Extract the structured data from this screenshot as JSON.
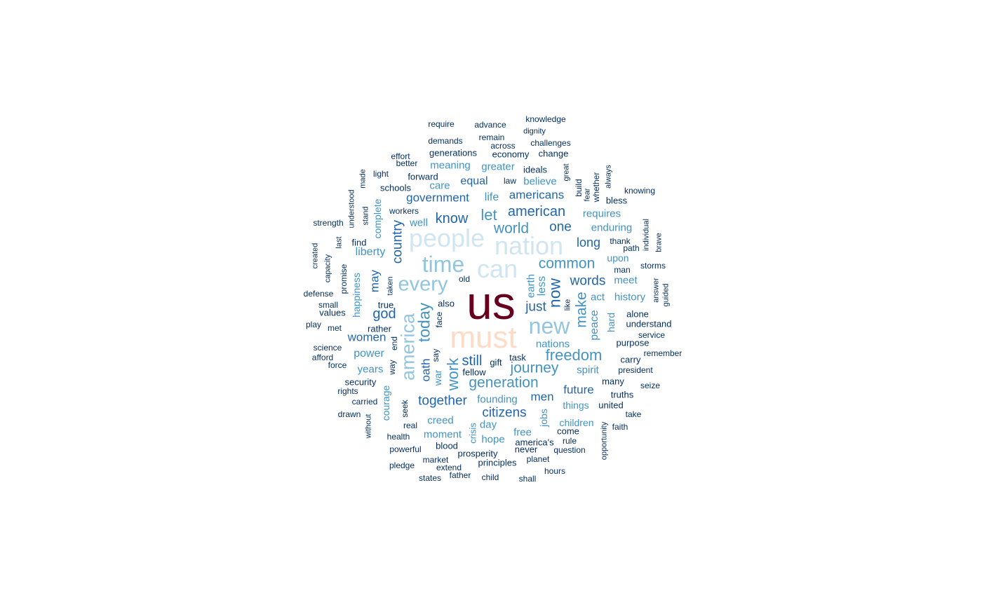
{
  "palette": {
    "darkest": "#67001F",
    "peach": "#FDDBC7",
    "pale_blue": "#D1E5F0",
    "light_blue": "#92C5DE",
    "mid_blue": "#4393C3",
    "blue": "#2166AC",
    "navy": "#053061"
  },
  "words": [
    {
      "text": "us",
      "weight": 1.0,
      "tier": "darkest"
    },
    {
      "text": "must",
      "weight": 0.55,
      "tier": "peach"
    },
    {
      "text": "people",
      "weight": 0.42,
      "tier": "pale_blue"
    },
    {
      "text": "nation",
      "weight": 0.42,
      "tier": "pale_blue"
    },
    {
      "text": "can",
      "weight": 0.42,
      "tier": "pale_blue"
    },
    {
      "text": "time",
      "weight": 0.36,
      "tier": "light_blue"
    },
    {
      "text": "new",
      "weight": 0.36,
      "tier": "light_blue"
    },
    {
      "text": "every",
      "weight": 0.33,
      "tier": "light_blue"
    },
    {
      "text": "america",
      "weight": 0.33,
      "tier": "light_blue"
    },
    {
      "text": "today",
      "weight": 0.25,
      "tier": "mid_blue"
    },
    {
      "text": "freedom",
      "weight": 0.25,
      "tier": "mid_blue"
    },
    {
      "text": "generation",
      "weight": 0.25,
      "tier": "mid_blue"
    },
    {
      "text": "work",
      "weight": 0.25,
      "tier": "mid_blue"
    },
    {
      "text": "journey",
      "weight": 0.25,
      "tier": "mid_blue"
    },
    {
      "text": "world",
      "weight": 0.25,
      "tier": "mid_blue"
    },
    {
      "text": "common",
      "weight": 0.25,
      "tier": "mid_blue"
    },
    {
      "text": "let",
      "weight": 0.25,
      "tier": "mid_blue"
    },
    {
      "text": "make",
      "weight": 0.25,
      "tier": "mid_blue"
    },
    {
      "text": "now",
      "weight": 0.25,
      "tier": "blue"
    },
    {
      "text": "god",
      "weight": 0.2,
      "tier": "blue"
    },
    {
      "text": "still",
      "weight": 0.2,
      "tier": "blue"
    },
    {
      "text": "know",
      "weight": 0.2,
      "tier": "blue"
    },
    {
      "text": "country",
      "weight": 0.2,
      "tier": "blue"
    },
    {
      "text": "american",
      "weight": 0.2,
      "tier": "blue"
    },
    {
      "text": "together",
      "weight": 0.2,
      "tier": "blue"
    },
    {
      "text": "citizens",
      "weight": 0.2,
      "tier": "blue"
    },
    {
      "text": "one",
      "weight": 0.2,
      "tier": "blue"
    },
    {
      "text": "words",
      "weight": 0.2,
      "tier": "blue"
    },
    {
      "text": "just",
      "weight": 0.2,
      "tier": "blue"
    },
    {
      "text": "oath",
      "weight": 0.18,
      "tier": "blue"
    },
    {
      "text": "women",
      "weight": 0.18,
      "tier": "blue"
    },
    {
      "text": "men",
      "weight": 0.18,
      "tier": "blue"
    },
    {
      "text": "long",
      "weight": 0.18,
      "tier": "blue"
    },
    {
      "text": "future",
      "weight": 0.18,
      "tier": "blue"
    },
    {
      "text": "may",
      "weight": 0.18,
      "tier": "blue"
    },
    {
      "text": "americans",
      "weight": 0.18,
      "tier": "blue"
    },
    {
      "text": "government",
      "weight": 0.18,
      "tier": "blue"
    },
    {
      "text": "power",
      "weight": 0.18,
      "tier": "mid_blue"
    },
    {
      "text": "liberty",
      "weight": 0.18,
      "tier": "mid_blue"
    },
    {
      "text": "peace",
      "weight": 0.18,
      "tier": "mid_blue"
    },
    {
      "text": "equal",
      "weight": 0.16,
      "tier": "blue"
    },
    {
      "text": "life",
      "weight": 0.16,
      "tier": "mid_blue"
    },
    {
      "text": "less",
      "weight": 0.16,
      "tier": "mid_blue"
    },
    {
      "text": "nations",
      "weight": 0.16,
      "tier": "mid_blue"
    },
    {
      "text": "spirit",
      "weight": 0.16,
      "tier": "mid_blue"
    },
    {
      "text": "creed",
      "weight": 0.16,
      "tier": "mid_blue"
    },
    {
      "text": "years",
      "weight": 0.16,
      "tier": "mid_blue"
    },
    {
      "text": "earth",
      "weight": 0.16,
      "tier": "mid_blue"
    },
    {
      "text": "war",
      "weight": 0.16,
      "tier": "mid_blue"
    },
    {
      "text": "history",
      "weight": 0.15,
      "tier": "mid_blue"
    },
    {
      "text": "believe",
      "weight": 0.15,
      "tier": "mid_blue"
    },
    {
      "text": "founding",
      "weight": 0.15,
      "tier": "mid_blue"
    },
    {
      "text": "enduring",
      "weight": 0.15,
      "tier": "mid_blue"
    },
    {
      "text": "requires",
      "weight": 0.15,
      "tier": "mid_blue"
    },
    {
      "text": "happiness",
      "weight": 0.15,
      "tier": "mid_blue"
    },
    {
      "text": "meaning",
      "weight": 0.15,
      "tier": "mid_blue"
    },
    {
      "text": "greater",
      "weight": 0.15,
      "tier": "mid_blue"
    },
    {
      "text": "things",
      "weight": 0.15,
      "tier": "mid_blue"
    },
    {
      "text": "moment",
      "weight": 0.15,
      "tier": "mid_blue"
    },
    {
      "text": "complete",
      "weight": 0.15,
      "tier": "mid_blue"
    },
    {
      "text": "hard",
      "weight": 0.15,
      "tier": "mid_blue"
    },
    {
      "text": "children",
      "weight": 0.15,
      "tier": "mid_blue"
    },
    {
      "text": "courage",
      "weight": 0.15,
      "tier": "mid_blue"
    },
    {
      "text": "jobs",
      "weight": 0.15,
      "tier": "mid_blue"
    },
    {
      "text": "crisis",
      "weight": 0.15,
      "tier": "mid_blue"
    },
    {
      "text": "act",
      "weight": 0.15,
      "tier": "mid_blue"
    },
    {
      "text": "meet",
      "weight": 0.15,
      "tier": "mid_blue"
    },
    {
      "text": "upon",
      "weight": 0.15,
      "tier": "mid_blue"
    },
    {
      "text": "hope",
      "weight": 0.15,
      "tier": "mid_blue"
    },
    {
      "text": "day",
      "weight": 0.15,
      "tier": "mid_blue"
    },
    {
      "text": "free",
      "weight": 0.15,
      "tier": "mid_blue"
    },
    {
      "text": "care",
      "weight": 0.15,
      "tier": "mid_blue"
    },
    {
      "text": "well",
      "weight": 0.15,
      "tier": "mid_blue"
    },
    {
      "text": "require",
      "weight": 0.1,
      "tier": "navy"
    },
    {
      "text": "advance",
      "weight": 0.1,
      "tier": "navy"
    },
    {
      "text": "knowledge",
      "weight": 0.1,
      "tier": "navy"
    },
    {
      "text": "dignity",
      "weight": 0.1,
      "tier": "navy"
    },
    {
      "text": "remain",
      "weight": 0.1,
      "tier": "navy"
    },
    {
      "text": "demands",
      "weight": 0.1,
      "tier": "navy"
    },
    {
      "text": "challenges",
      "weight": 0.1,
      "tier": "navy"
    },
    {
      "text": "across",
      "weight": 0.1,
      "tier": "navy"
    },
    {
      "text": "effort",
      "weight": 0.1,
      "tier": "navy"
    },
    {
      "text": "generations",
      "weight": 0.12,
      "tier": "navy"
    },
    {
      "text": "economy",
      "weight": 0.12,
      "tier": "navy"
    },
    {
      "text": "change",
      "weight": 0.12,
      "tier": "navy"
    },
    {
      "text": "better",
      "weight": 0.1,
      "tier": "navy"
    },
    {
      "text": "made",
      "weight": 0.1,
      "tier": "navy"
    },
    {
      "text": "light",
      "weight": 0.1,
      "tier": "navy"
    },
    {
      "text": "forward",
      "weight": 0.12,
      "tier": "navy"
    },
    {
      "text": "ideals",
      "weight": 0.12,
      "tier": "navy"
    },
    {
      "text": "great",
      "weight": 0.1,
      "tier": "navy"
    },
    {
      "text": "build",
      "weight": 0.1,
      "tier": "navy"
    },
    {
      "text": "whether",
      "weight": 0.1,
      "tier": "navy"
    },
    {
      "text": "always",
      "weight": 0.1,
      "tier": "navy"
    },
    {
      "text": "law",
      "weight": 0.1,
      "tier": "navy"
    },
    {
      "text": "fear",
      "weight": 0.1,
      "tier": "navy"
    },
    {
      "text": "understood",
      "weight": 0.1,
      "tier": "navy"
    },
    {
      "text": "schools",
      "weight": 0.12,
      "tier": "navy"
    },
    {
      "text": "knowing",
      "weight": 0.1,
      "tier": "navy"
    },
    {
      "text": "bless",
      "weight": 0.12,
      "tier": "navy"
    },
    {
      "text": "stand",
      "weight": 0.1,
      "tier": "navy"
    },
    {
      "text": "workers",
      "weight": 0.1,
      "tier": "navy"
    },
    {
      "text": "strength",
      "weight": 0.1,
      "tier": "navy"
    },
    {
      "text": "individual",
      "weight": 0.1,
      "tier": "navy"
    },
    {
      "text": "find",
      "weight": 0.12,
      "tier": "navy"
    },
    {
      "text": "last",
      "weight": 0.1,
      "tier": "navy"
    },
    {
      "text": "thank",
      "weight": 0.1,
      "tier": "navy"
    },
    {
      "text": "brave",
      "weight": 0.1,
      "tier": "navy"
    },
    {
      "text": "path",
      "weight": 0.1,
      "tier": "navy"
    },
    {
      "text": "created",
      "weight": 0.1,
      "tier": "navy"
    },
    {
      "text": "capacity",
      "weight": 0.1,
      "tier": "navy"
    },
    {
      "text": "promise",
      "weight": 0.12,
      "tier": "navy"
    },
    {
      "text": "man",
      "weight": 0.1,
      "tier": "navy"
    },
    {
      "text": "storms",
      "weight": 0.1,
      "tier": "navy"
    },
    {
      "text": "old",
      "weight": 0.1,
      "tier": "navy"
    },
    {
      "text": "taken",
      "weight": 0.1,
      "tier": "navy"
    },
    {
      "text": "defense",
      "weight": 0.1,
      "tier": "navy"
    },
    {
      "text": "answer",
      "weight": 0.1,
      "tier": "navy"
    },
    {
      "text": "guided",
      "weight": 0.1,
      "tier": "navy"
    },
    {
      "text": "small",
      "weight": 0.1,
      "tier": "navy"
    },
    {
      "text": "true",
      "weight": 0.12,
      "tier": "navy"
    },
    {
      "text": "also",
      "weight": 0.12,
      "tier": "navy"
    },
    {
      "text": "like",
      "weight": 0.1,
      "tier": "navy"
    },
    {
      "text": "alone",
      "weight": 0.12,
      "tier": "navy"
    },
    {
      "text": "values",
      "weight": 0.12,
      "tier": "navy"
    },
    {
      "text": "understand",
      "weight": 0.12,
      "tier": "navy"
    },
    {
      "text": "face",
      "weight": 0.1,
      "tier": "navy"
    },
    {
      "text": "play",
      "weight": 0.1,
      "tier": "navy"
    },
    {
      "text": "met",
      "weight": 0.1,
      "tier": "navy"
    },
    {
      "text": "rather",
      "weight": 0.12,
      "tier": "navy"
    },
    {
      "text": "service",
      "weight": 0.1,
      "tier": "navy"
    },
    {
      "text": "end",
      "weight": 0.1,
      "tier": "navy"
    },
    {
      "text": "purpose",
      "weight": 0.12,
      "tier": "navy"
    },
    {
      "text": "science",
      "weight": 0.1,
      "tier": "navy"
    },
    {
      "text": "remember",
      "weight": 0.1,
      "tier": "navy"
    },
    {
      "text": "afford",
      "weight": 0.1,
      "tier": "navy"
    },
    {
      "text": "way",
      "weight": 0.12,
      "tier": "navy"
    },
    {
      "text": "say",
      "weight": 0.1,
      "tier": "navy"
    },
    {
      "text": "task",
      "weight": 0.12,
      "tier": "navy"
    },
    {
      "text": "carry",
      "weight": 0.12,
      "tier": "navy"
    },
    {
      "text": "force",
      "weight": 0.1,
      "tier": "navy"
    },
    {
      "text": "gift",
      "weight": 0.12,
      "tier": "navy"
    },
    {
      "text": "president",
      "weight": 0.1,
      "tier": "navy"
    },
    {
      "text": "fellow",
      "weight": 0.12,
      "tier": "navy"
    },
    {
      "text": "security",
      "weight": 0.12,
      "tier": "navy"
    },
    {
      "text": "many",
      "weight": 0.12,
      "tier": "navy"
    },
    {
      "text": "seize",
      "weight": 0.1,
      "tier": "navy"
    },
    {
      "text": "rights",
      "weight": 0.1,
      "tier": "navy"
    },
    {
      "text": "seek",
      "weight": 0.12,
      "tier": "navy"
    },
    {
      "text": "truths",
      "weight": 0.12,
      "tier": "navy"
    },
    {
      "text": "carried",
      "weight": 0.1,
      "tier": "navy"
    },
    {
      "text": "united",
      "weight": 0.12,
      "tier": "navy"
    },
    {
      "text": "drawn",
      "weight": 0.1,
      "tier": "navy"
    },
    {
      "text": "take",
      "weight": 0.1,
      "tier": "navy"
    },
    {
      "text": "without",
      "weight": 0.1,
      "tier": "navy"
    },
    {
      "text": "real",
      "weight": 0.1,
      "tier": "navy"
    },
    {
      "text": "faith",
      "weight": 0.1,
      "tier": "navy"
    },
    {
      "text": "come",
      "weight": 0.12,
      "tier": "navy"
    },
    {
      "text": "opportunity",
      "weight": 0.1,
      "tier": "navy"
    },
    {
      "text": "health",
      "weight": 0.1,
      "tier": "navy"
    },
    {
      "text": "america's",
      "weight": 0.12,
      "tier": "navy"
    },
    {
      "text": "rule",
      "weight": 0.1,
      "tier": "navy"
    },
    {
      "text": "blood",
      "weight": 0.12,
      "tier": "navy"
    },
    {
      "text": "powerful",
      "weight": 0.1,
      "tier": "navy"
    },
    {
      "text": "never",
      "weight": 0.12,
      "tier": "navy"
    },
    {
      "text": "question",
      "weight": 0.1,
      "tier": "navy"
    },
    {
      "text": "prosperity",
      "weight": 0.12,
      "tier": "navy"
    },
    {
      "text": "market",
      "weight": 0.1,
      "tier": "navy"
    },
    {
      "text": "planet",
      "weight": 0.1,
      "tier": "navy"
    },
    {
      "text": "principles",
      "weight": 0.12,
      "tier": "navy"
    },
    {
      "text": "pledge",
      "weight": 0.1,
      "tier": "navy"
    },
    {
      "text": "extend",
      "weight": 0.1,
      "tier": "navy"
    },
    {
      "text": "hours",
      "weight": 0.1,
      "tier": "navy"
    },
    {
      "text": "father",
      "weight": 0.1,
      "tier": "navy"
    },
    {
      "text": "states",
      "weight": 0.1,
      "tier": "navy"
    },
    {
      "text": "child",
      "weight": 0.1,
      "tier": "navy"
    },
    {
      "text": "shall",
      "weight": 0.1,
      "tier": "navy"
    }
  ]
}
